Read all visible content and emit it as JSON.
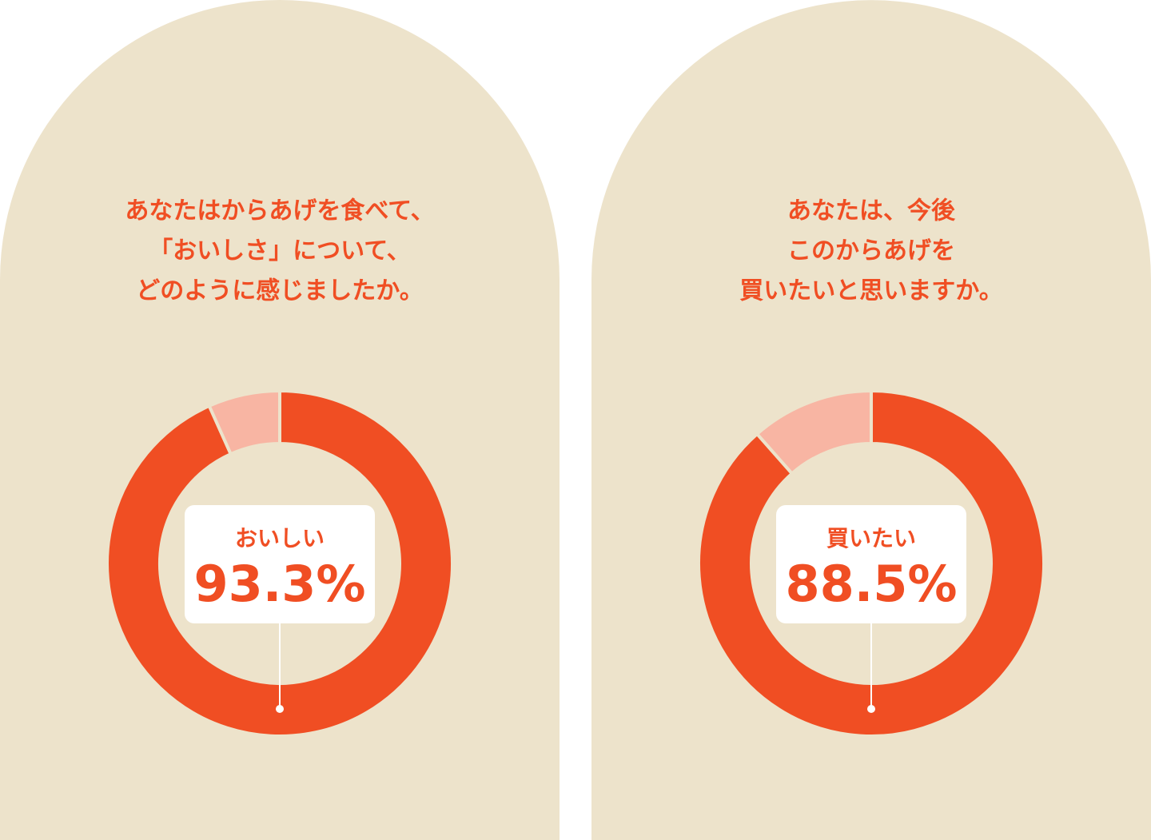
{
  "chart_data": [
    {
      "type": "donut",
      "title_lines": [
        "あなたはからあげを食べて、",
        "「おいしさ」について、",
        "どのように感じましたか。"
      ],
      "categories": [
        "おいしい",
        null
      ],
      "values": [
        93.3,
        6.7
      ],
      "value_labels": [
        "93.3%",
        null
      ],
      "colors": [
        "#f04e23",
        "#f8b5a3"
      ]
    },
    {
      "type": "donut",
      "title_lines": [
        "あなたは、今後",
        "このからあげを",
        "買いたいと思いますか。"
      ],
      "categories": [
        "買いたい",
        null
      ],
      "values": [
        88.5,
        11.5
      ],
      "value_labels": [
        "88.5%",
        null
      ],
      "colors": [
        "#f04e23",
        "#f8b5a3"
      ]
    }
  ]
}
